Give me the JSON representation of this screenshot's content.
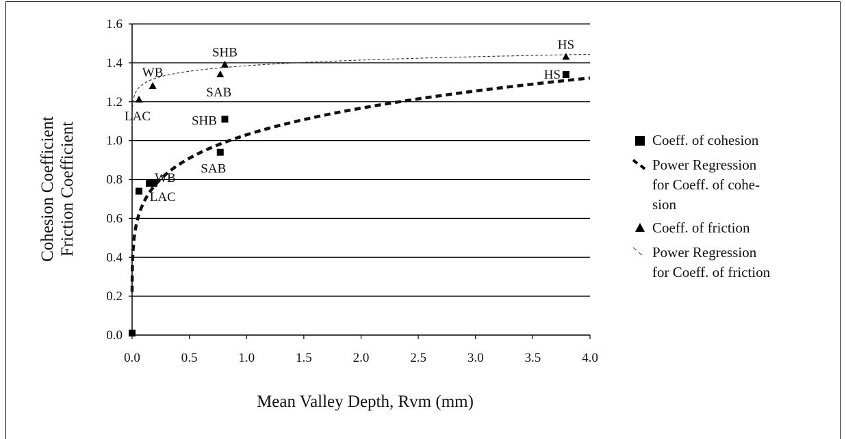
{
  "chart_data": {
    "type": "scatter",
    "xlabel": "Mean Valley Depth, Rvm (mm)",
    "ylabel_lines": [
      "Cohesion Coefficient",
      "Friction Coefficient"
    ],
    "xlim": [
      0.0,
      4.0
    ],
    "ylim": [
      0.0,
      1.6
    ],
    "x_ticks": [
      "0.0",
      "0.5",
      "1.0",
      "1.5",
      "2.0",
      "2.5",
      "3.0",
      "3.5",
      "4.0"
    ],
    "y_ticks": [
      "0.0",
      "0.2",
      "0.4",
      "0.6",
      "0.8",
      "1.0",
      "1.2",
      "1.4",
      "1.6"
    ],
    "grid": "horizontal",
    "legend_placement": "right",
    "legend": [
      {
        "marker": "square",
        "lines": [
          "Coeff. of cohesion"
        ]
      },
      {
        "marker": "thick-dash",
        "lines": [
          "Power Regression",
          "for Coeff. of cohe-",
          "sion"
        ]
      },
      {
        "marker": "triangle",
        "lines": [
          "Coeff. of friction"
        ]
      },
      {
        "marker": "thin-dash",
        "lines": [
          "Power Regression",
          "for Coeff. of friction"
        ]
      }
    ],
    "series": [
      {
        "marker": "square",
        "points": [
          {
            "x": 0.0,
            "y": 0.01,
            "label": ""
          },
          {
            "x": 0.06,
            "y": 0.74,
            "label": ""
          },
          {
            "x": 0.15,
            "y": 0.78,
            "label": "WB"
          },
          {
            "x": 0.19,
            "y": 0.78,
            "label": "LAC"
          },
          {
            "x": 0.77,
            "y": 0.94,
            "label": "SAB"
          },
          {
            "x": 0.81,
            "y": 1.11,
            "label": "SHB"
          },
          {
            "x": 3.79,
            "y": 1.34,
            "label": "HS"
          }
        ]
      },
      {
        "marker": "triangle",
        "points": [
          {
            "x": 0.06,
            "y": 1.21,
            "label": "LAC"
          },
          {
            "x": 0.18,
            "y": 1.28,
            "label": "WB"
          },
          {
            "x": 0.77,
            "y": 1.34,
            "label": "SAB"
          },
          {
            "x": 0.81,
            "y": 1.39,
            "label": "SHB"
          },
          {
            "x": 3.79,
            "y": 1.43,
            "label": "HS"
          }
        ]
      }
    ],
    "regressions": [
      {
        "style": "thick-dash",
        "a": 1.03,
        "b": 0.18
      },
      {
        "style": "thin-dash",
        "a": 1.385,
        "b": 0.03
      }
    ]
  }
}
